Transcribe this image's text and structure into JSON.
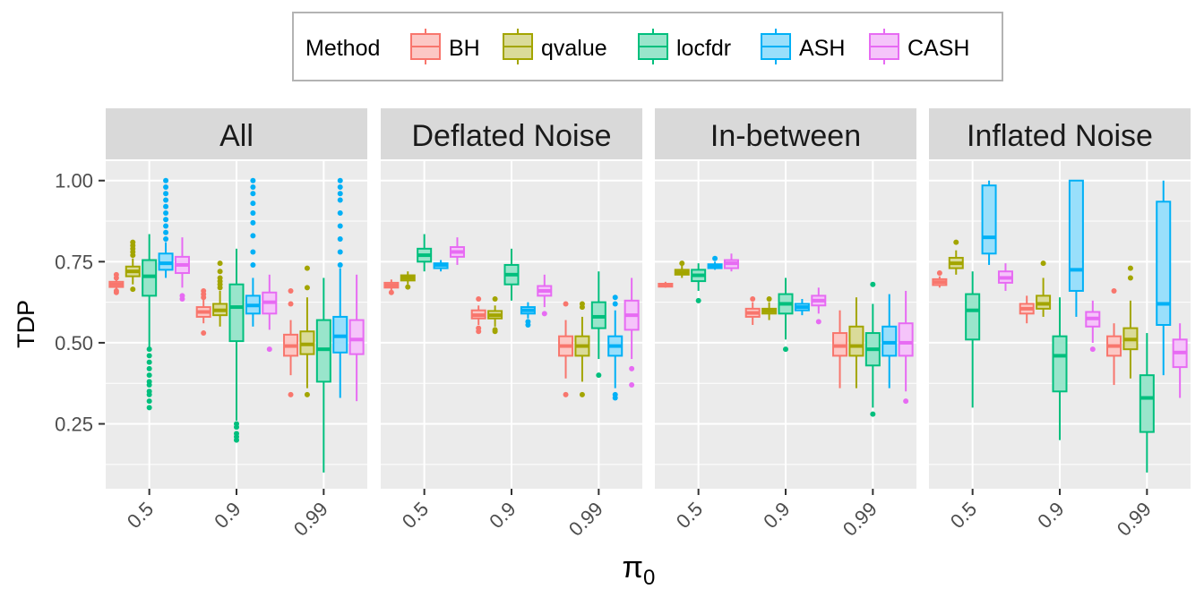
{
  "legend": {
    "title": "Method",
    "items": [
      {
        "label": "BH",
        "color": "#F8766D"
      },
      {
        "label": "qvalue",
        "color": "#A3A500"
      },
      {
        "label": "locfdr",
        "color": "#00BF7D"
      },
      {
        "label": "ASH",
        "color": "#00B0F6"
      },
      {
        "label": "CASH",
        "color": "#E76BF3"
      }
    ]
  },
  "chart_data": {
    "type": "boxplot",
    "ylabel": "TDP",
    "xlabel": "π",
    "xlabel_subscript": "0",
    "ylim": [
      0.05,
      1.06
    ],
    "yticks": [
      "0.25",
      "0.50",
      "0.75",
      "1.00"
    ],
    "ytick_values": [
      0.25,
      0.5,
      0.75,
      1.0
    ],
    "categories": [
      "0.5",
      "0.9",
      "0.99"
    ],
    "methods": [
      "BH",
      "qvalue",
      "locfdr",
      "ASH",
      "CASH"
    ],
    "grid": true,
    "legend_position": "top",
    "panels": [
      {
        "title": "All",
        "groups": [
          [
            {
              "whislo": 0.665,
              "q1": 0.672,
              "med": 0.68,
              "q3": 0.688,
              "whishi": 0.695,
              "out": [
                0.655,
                0.66,
                0.7,
                0.71
              ]
            },
            {
              "whislo": 0.68,
              "q1": 0.705,
              "med": 0.72,
              "q3": 0.735,
              "whishi": 0.76,
              "out": [
                0.665,
                0.77,
                0.78,
                0.79,
                0.8,
                0.81
              ]
            },
            {
              "whislo": 0.48,
              "q1": 0.645,
              "med": 0.705,
              "q3": 0.755,
              "whishi": 0.835,
              "out": [
                0.3,
                0.32,
                0.34,
                0.35,
                0.37,
                0.38,
                0.4,
                0.42,
                0.44,
                0.46,
                0.48
              ]
            },
            {
              "whislo": 0.7,
              "q1": 0.725,
              "med": 0.745,
              "q3": 0.775,
              "whishi": 0.81,
              "out": [
                0.82,
                0.84,
                0.86,
                0.88,
                0.9,
                0.92,
                0.94,
                0.96,
                0.98,
                1.0
              ]
            },
            {
              "whislo": 0.67,
              "q1": 0.715,
              "med": 0.74,
              "q3": 0.765,
              "whishi": 0.825,
              "out": [
                0.635,
                0.645
              ]
            }
          ],
          [
            {
              "whislo": 0.56,
              "q1": 0.58,
              "med": 0.595,
              "q3": 0.61,
              "whishi": 0.635,
              "out": [
                0.53,
                0.64,
                0.65,
                0.66
              ]
            },
            {
              "whislo": 0.55,
              "q1": 0.585,
              "med": 0.6,
              "q3": 0.62,
              "whishi": 0.66,
              "out": [
                0.67,
                0.68,
                0.69,
                0.7,
                0.72,
                0.745
              ]
            },
            {
              "whislo": 0.26,
              "q1": 0.505,
              "med": 0.61,
              "q3": 0.68,
              "whishi": 0.79,
              "out": [
                0.2,
                0.21,
                0.22,
                0.24,
                0.25
              ]
            },
            {
              "whislo": 0.55,
              "q1": 0.59,
              "med": 0.615,
              "q3": 0.645,
              "whishi": 0.7,
              "out": [
                0.74,
                0.78,
                0.83,
                0.87,
                0.9,
                0.93,
                0.96,
                0.98,
                1.0
              ]
            },
            {
              "whislo": 0.54,
              "q1": 0.59,
              "med": 0.625,
              "q3": 0.655,
              "whishi": 0.71,
              "out": [
                0.48
              ]
            }
          ],
          [
            {
              "whislo": 0.4,
              "q1": 0.46,
              "med": 0.49,
              "q3": 0.525,
              "whishi": 0.57,
              "out": [
                0.34,
                0.62,
                0.66
              ]
            },
            {
              "whislo": 0.36,
              "q1": 0.465,
              "med": 0.495,
              "q3": 0.535,
              "whishi": 0.64,
              "out": [
                0.34,
                0.67,
                0.73
              ]
            },
            {
              "whislo": 0.1,
              "q1": 0.38,
              "med": 0.48,
              "q3": 0.57,
              "whishi": 0.7,
              "out": []
            },
            {
              "whislo": 0.33,
              "q1": 0.47,
              "med": 0.52,
              "q3": 0.58,
              "whishi": 0.73,
              "out": [
                0.74,
                0.78,
                0.82,
                0.86,
                0.9,
                0.94,
                0.96,
                0.98,
                1.0
              ]
            },
            {
              "whislo": 0.32,
              "q1": 0.465,
              "med": 0.51,
              "q3": 0.57,
              "whishi": 0.71,
              "out": []
            }
          ]
        ]
      },
      {
        "title": "Deflated Noise",
        "groups": [
          [
            {
              "whislo": 0.66,
              "q1": 0.67,
              "med": 0.677,
              "q3": 0.685,
              "whishi": 0.695,
              "out": [
                0.655
              ]
            },
            {
              "whislo": 0.68,
              "q1": 0.692,
              "med": 0.7,
              "q3": 0.708,
              "whishi": 0.72,
              "out": [
                0.672
              ]
            },
            {
              "whislo": 0.72,
              "q1": 0.75,
              "med": 0.77,
              "q3": 0.79,
              "whishi": 0.835,
              "out": []
            },
            {
              "whislo": 0.72,
              "q1": 0.73,
              "med": 0.74,
              "q3": 0.745,
              "whishi": 0.755,
              "out": []
            },
            {
              "whislo": 0.74,
              "q1": 0.765,
              "med": 0.78,
              "q3": 0.795,
              "whishi": 0.825,
              "out": []
            }
          ],
          [
            {
              "whislo": 0.555,
              "q1": 0.575,
              "med": 0.585,
              "q3": 0.6,
              "whishi": 0.615,
              "out": [
                0.535,
                0.545,
                0.635
              ]
            },
            {
              "whislo": 0.55,
              "q1": 0.575,
              "med": 0.585,
              "q3": 0.598,
              "whishi": 0.615,
              "out": [
                0.535,
                0.54,
                0.635
              ]
            },
            {
              "whislo": 0.63,
              "q1": 0.68,
              "med": 0.71,
              "q3": 0.74,
              "whishi": 0.79,
              "out": []
            },
            {
              "whislo": 0.575,
              "q1": 0.59,
              "med": 0.6,
              "q3": 0.61,
              "whishi": 0.625,
              "out": [
                0.555,
                0.565
              ]
            },
            {
              "whislo": 0.61,
              "q1": 0.645,
              "med": 0.66,
              "q3": 0.675,
              "whishi": 0.71,
              "out": [
                0.59
              ]
            }
          ],
          [
            {
              "whislo": 0.39,
              "q1": 0.46,
              "med": 0.49,
              "q3": 0.52,
              "whishi": 0.57,
              "out": [
                0.34,
                0.62
              ]
            },
            {
              "whislo": 0.38,
              "q1": 0.46,
              "med": 0.49,
              "q3": 0.52,
              "whishi": 0.58,
              "out": [
                0.34,
                0.61,
                0.62
              ]
            },
            {
              "whislo": 0.45,
              "q1": 0.545,
              "med": 0.58,
              "q3": 0.625,
              "whishi": 0.72,
              "out": [
                0.4
              ]
            },
            {
              "whislo": 0.36,
              "q1": 0.46,
              "med": 0.49,
              "q3": 0.52,
              "whishi": 0.6,
              "out": [
                0.33,
                0.34,
                0.62,
                0.64
              ]
            },
            {
              "whislo": 0.45,
              "q1": 0.54,
              "med": 0.585,
              "q3": 0.63,
              "whishi": 0.7,
              "out": [
                0.37,
                0.42
              ]
            }
          ]
        ]
      },
      {
        "title": "In-between",
        "groups": [
          [
            {
              "whislo": 0.67,
              "q1": 0.673,
              "med": 0.677,
              "q3": 0.682,
              "whishi": 0.688,
              "out": []
            },
            {
              "whislo": 0.7,
              "q1": 0.71,
              "med": 0.717,
              "q3": 0.725,
              "whishi": 0.74,
              "out": [
                0.745
              ]
            },
            {
              "whislo": 0.66,
              "q1": 0.69,
              "med": 0.708,
              "q3": 0.725,
              "whishi": 0.745,
              "out": [
                0.63
              ]
            },
            {
              "whislo": 0.725,
              "q1": 0.73,
              "med": 0.737,
              "q3": 0.742,
              "whishi": 0.75,
              "out": [
                0.76
              ]
            },
            {
              "whislo": 0.72,
              "q1": 0.73,
              "med": 0.745,
              "q3": 0.755,
              "whishi": 0.775,
              "out": []
            }
          ],
          [
            {
              "whislo": 0.555,
              "q1": 0.58,
              "med": 0.592,
              "q3": 0.605,
              "whishi": 0.625,
              "out": [
                0.635
              ]
            },
            {
              "whislo": 0.57,
              "q1": 0.59,
              "med": 0.598,
              "q3": 0.605,
              "whishi": 0.625,
              "out": [
                0.635
              ]
            },
            {
              "whislo": 0.51,
              "q1": 0.59,
              "med": 0.62,
              "q3": 0.65,
              "whishi": 0.7,
              "out": [
                0.48
              ]
            },
            {
              "whislo": 0.585,
              "q1": 0.6,
              "med": 0.61,
              "q3": 0.62,
              "whishi": 0.635,
              "out": []
            },
            {
              "whislo": 0.59,
              "q1": 0.615,
              "med": 0.63,
              "q3": 0.645,
              "whishi": 0.67,
              "out": [
                0.565
              ]
            }
          ],
          [
            {
              "whislo": 0.36,
              "q1": 0.46,
              "med": 0.49,
              "q3": 0.53,
              "whishi": 0.6,
              "out": []
            },
            {
              "whislo": 0.36,
              "q1": 0.46,
              "med": 0.49,
              "q3": 0.55,
              "whishi": 0.64,
              "out": []
            },
            {
              "whislo": 0.3,
              "q1": 0.43,
              "med": 0.48,
              "q3": 0.53,
              "whishi": 0.62,
              "out": [
                0.28,
                0.68
              ]
            },
            {
              "whislo": 0.36,
              "q1": 0.46,
              "med": 0.5,
              "q3": 0.55,
              "whishi": 0.65,
              "out": []
            },
            {
              "whislo": 0.35,
              "q1": 0.46,
              "med": 0.5,
              "q3": 0.56,
              "whishi": 0.66,
              "out": [
                0.32
              ]
            }
          ]
        ]
      },
      {
        "title": "Inflated Noise",
        "groups": [
          [
            {
              "whislo": 0.67,
              "q1": 0.678,
              "med": 0.687,
              "q3": 0.696,
              "whishi": 0.705,
              "out": [
                0.715
              ]
            },
            {
              "whislo": 0.71,
              "q1": 0.73,
              "med": 0.745,
              "q3": 0.762,
              "whishi": 0.785,
              "out": [
                0.81
              ]
            },
            {
              "whislo": 0.3,
              "q1": 0.51,
              "med": 0.6,
              "q3": 0.65,
              "whishi": 0.72,
              "out": []
            },
            {
              "whislo": 0.74,
              "q1": 0.775,
              "med": 0.825,
              "q3": 0.985,
              "whishi": 1.0,
              "out": []
            },
            {
              "whislo": 0.66,
              "q1": 0.685,
              "med": 0.7,
              "q3": 0.72,
              "whishi": 0.745,
              "out": []
            }
          ],
          [
            {
              "whislo": 0.56,
              "q1": 0.59,
              "med": 0.605,
              "q3": 0.62,
              "whishi": 0.645,
              "out": []
            },
            {
              "whislo": 0.58,
              "q1": 0.605,
              "med": 0.62,
              "q3": 0.645,
              "whishi": 0.7,
              "out": [
                0.745
              ]
            },
            {
              "whislo": 0.2,
              "q1": 0.35,
              "med": 0.46,
              "q3": 0.52,
              "whishi": 0.64,
              "out": []
            },
            {
              "whislo": 0.58,
              "q1": 0.66,
              "med": 0.725,
              "q3": 1.0,
              "whishi": 1.0,
              "out": []
            },
            {
              "whislo": 0.5,
              "q1": 0.55,
              "med": 0.575,
              "q3": 0.595,
              "whishi": 0.63,
              "out": [
                0.48
              ]
            }
          ],
          [
            {
              "whislo": 0.37,
              "q1": 0.46,
              "med": 0.49,
              "q3": 0.52,
              "whishi": 0.56,
              "out": [
                0.66
              ]
            },
            {
              "whislo": 0.39,
              "q1": 0.48,
              "med": 0.51,
              "q3": 0.545,
              "whishi": 0.63,
              "out": [
                0.7,
                0.73
              ]
            },
            {
              "whislo": 0.1,
              "q1": 0.225,
              "med": 0.33,
              "q3": 0.4,
              "whishi": 0.53,
              "out": []
            },
            {
              "whislo": 0.4,
              "q1": 0.555,
              "med": 0.62,
              "q3": 0.935,
              "whishi": 1.0,
              "out": []
            },
            {
              "whislo": 0.33,
              "q1": 0.425,
              "med": 0.47,
              "q3": 0.51,
              "whishi": 0.56,
              "out": []
            }
          ]
        ]
      }
    ]
  }
}
